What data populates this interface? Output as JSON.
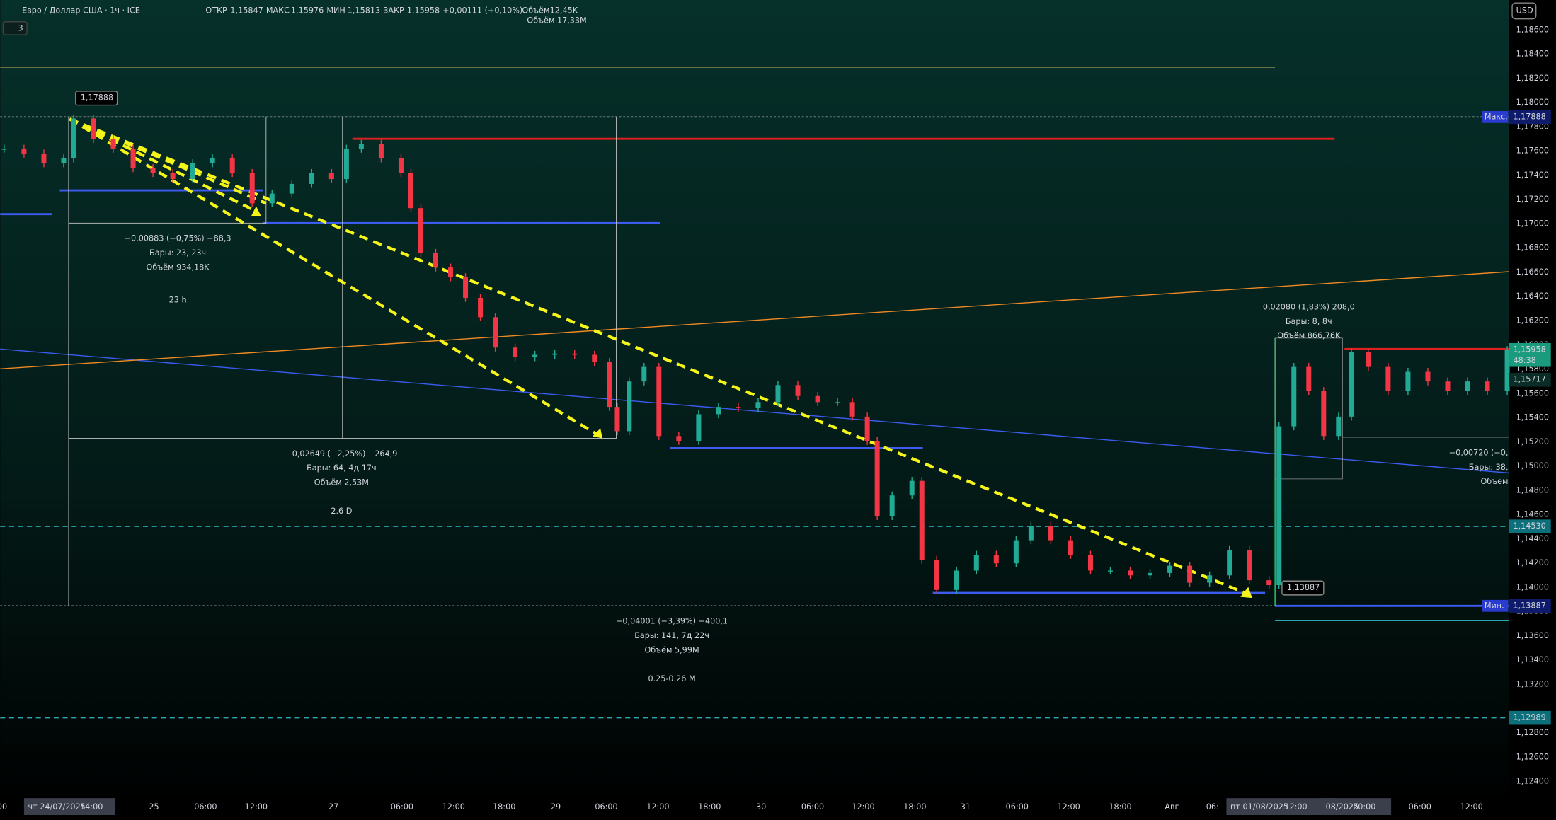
{
  "header": {
    "symbol": "Евро / Доллар США · 1ч · ICE",
    "open_label": "ОТКР",
    "open": "1,15847",
    "high_label": "МАКС",
    "high": "1,15976",
    "low_label": "МИН",
    "low": "1,15813",
    "close_label": "ЗАКР",
    "close": "1,15958",
    "change": "+0,00111 (+0,10%)",
    "volume_label": "Объём",
    "volume": "12,45K",
    "volume2": "Объём 17,33M",
    "indicators": "3"
  },
  "price_axis": {
    "currency": "USD",
    "labels": [
      "1,18600",
      "1,18400",
      "1,18200",
      "1,18000",
      "1,17800",
      "1,17600",
      "1,17400",
      "1,17200",
      "1,17000",
      "1,16800",
      "1,16600",
      "1,16400",
      "1,16200",
      "1,16000",
      "1,15800",
      "1,15600",
      "1,15400",
      "1,15200",
      "1,15000",
      "1,14800",
      "1,14600",
      "1,14400",
      "1,14200",
      "1,14000",
      "1,13800",
      "1,13600",
      "1,13400",
      "1,13200",
      "1,12800",
      "1,12600",
      "1,12400"
    ]
  },
  "price_tags": [
    {
      "price": "1,17888",
      "label": "Макс."
    },
    {
      "price": "1,15958",
      "label": "48:38"
    },
    {
      "price": "1,15717"
    },
    {
      "price": "1,14530"
    },
    {
      "price": "1,13887",
      "label": "Мин."
    },
    {
      "price": "1,12989"
    }
  ],
  "time_axis": {
    "labels": [
      "00",
      "чт 24/07/2025",
      "14:00",
      "25",
      "06:00",
      "12:00",
      "27",
      "06:00",
      "12:00",
      "18:00",
      "29",
      "06:00",
      "12:00",
      "18:00",
      "30",
      "06:00",
      "12:00",
      "18:00",
      "31",
      "06:00",
      "12:00",
      "18:00",
      "Авг",
      "06:",
      "пт 01/08/2025",
      "12:00",
      "08/2025",
      "20:00",
      "06:00",
      "12:00"
    ]
  },
  "chart": {
    "closes": [
      1.1762,
      1.1758,
      1.175,
      1.1754,
      1.1787,
      1.177,
      1.1762,
      1.1746,
      1.1742,
      1.1737,
      1.175,
      1.1754,
      1.1742,
      1.1717,
      1.1725,
      1.1733,
      1.1742,
      1.1737,
      1.1762,
      1.1766,
      1.1754,
      1.1742,
      1.1713,
      1.1676,
      1.1664,
      1.1656,
      1.1639,
      1.1623,
      1.1598,
      1.159,
      1.1592,
      1.1593,
      1.1592,
      1.1586,
      1.1549,
      1.1529,
      1.157,
      1.1582,
      1.1525,
      1.1521,
      1.1543,
      1.1549,
      1.1548,
      1.1553,
      1.1567,
      1.1558,
      1.1553,
      1.1553,
      1.1541,
      1.1521,
      1.1459,
      1.1476,
      1.1488,
      1.1423,
      1.1398,
      1.1414,
      1.1427,
      1.142,
      1.1439,
      1.1451,
      1.1439,
      1.1427,
      1.1414,
      1.1414,
      1.141,
      1.1412,
      1.1418,
      1.1404,
      1.141,
      1.1431,
      1.1406,
      1.1402,
      1.1533,
      1.1582,
      1.1562,
      1.1525,
      1.1541,
      1.1594,
      1.1582,
      1.1562,
      1.1578,
      1.157,
      1.1562,
      1.157,
      1.1562,
      1.1596
    ]
  },
  "annotations": {
    "max_label": "1,17888",
    "min_label": "1,13887",
    "m1": [
      "−0,00883 (−0,75%) −88,3",
      "Бары: 23, 23ч",
      "Объём 934,18K"
    ],
    "m1_note": "23 h",
    "m2": [
      "−0,02649 (−2,25%) −264,9",
      "Бары: 64, 4д 17ч",
      "Объём 2,53M"
    ],
    "m2_note": "2.6 D",
    "m3": [
      "−0,04001 (−3,39%) −400,1",
      "Бары: 141, 7д 22ч",
      "Объём 5,99M"
    ],
    "m3_note": "0.25-0.26 M",
    "m4": [
      "0,02080 (1,83%) 208,0",
      "Бары: 8, 8ч",
      "Объём 866,76K"
    ],
    "m5": [
      "−0,00720 (−0,",
      "Бары: 38,",
      "Объём"
    ]
  }
}
